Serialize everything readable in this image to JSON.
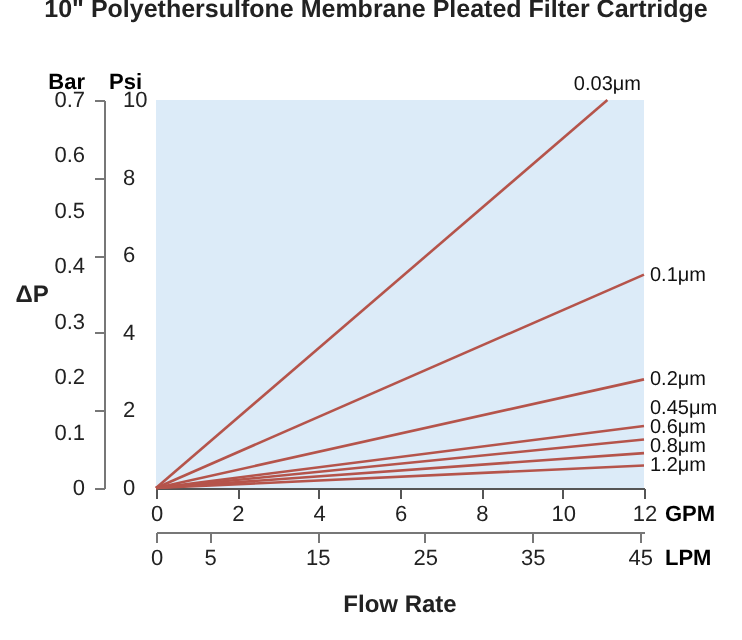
{
  "chart_data": {
    "type": "line",
    "title": "10\" Polyethersulfone Membrane Pleated Filter Cartridge",
    "xlabel": "GPM",
    "x2label": "LPM",
    "ylabel": "Psi",
    "y2label": "Bar",
    "annotations": [
      "ΔP",
      "Flow Rate"
    ],
    "x": [
      0,
      12
    ],
    "xlim": [
      0,
      12
    ],
    "xticks": [
      0,
      2,
      4,
      6,
      8,
      10,
      12
    ],
    "x2lim": [
      0,
      45.4
    ],
    "x2ticks": [
      0,
      5,
      15,
      25,
      35,
      45
    ],
    "ylim": [
      0,
      10
    ],
    "yticks": [
      0,
      2,
      4,
      6,
      8,
      10
    ],
    "y2lim": [
      0,
      0.7
    ],
    "y2ticks": [
      0,
      0.1,
      0.2,
      0.3,
      0.4,
      0.5,
      0.6,
      0.7
    ],
    "grid": false,
    "legend": false,
    "line_style": "solid",
    "series": [
      {
        "name": "0.03μm",
        "color": "#b5544b",
        "x": [
          0,
          11.1
        ],
        "values": [
          0,
          10
        ]
      },
      {
        "name": "0.1μm",
        "color": "#b5544b",
        "values": [
          0,
          5.5
        ]
      },
      {
        "name": "0.2μm",
        "color": "#b5544b",
        "values": [
          0,
          2.8
        ]
      },
      {
        "name": "0.45μm",
        "color": "#b5544b",
        "values": [
          0,
          1.6
        ]
      },
      {
        "name": "0.6μm",
        "color": "#b5544b",
        "values": [
          0,
          1.25
        ]
      },
      {
        "name": "0.8μm",
        "color": "#b5544b",
        "values": [
          0,
          0.9
        ]
      },
      {
        "name": "1.2μm",
        "color": "#b5544b",
        "values": [
          0,
          0.58
        ]
      }
    ]
  }
}
